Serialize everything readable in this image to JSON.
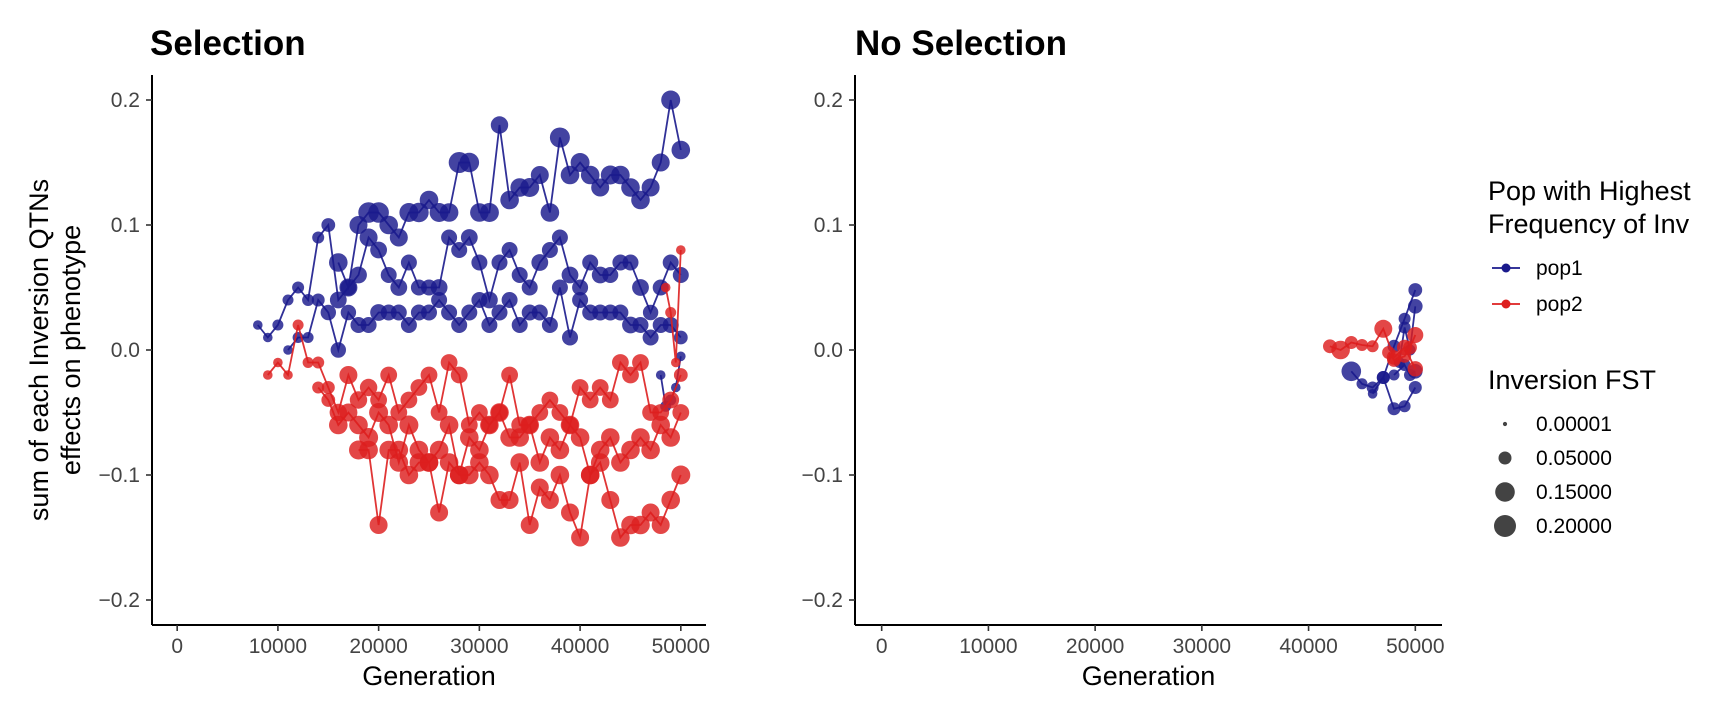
{
  "chart_data": [
    {
      "type": "scatter",
      "title": "Selection",
      "xlabel": "Generation",
      "ylabel": [
        "sum of each Inversion QTNs",
        "effects on phenotype"
      ],
      "xlim": [
        -2500,
        52500
      ],
      "ylim": [
        -0.22,
        0.22
      ],
      "xticks": [
        0,
        10000,
        20000,
        30000,
        40000,
        50000
      ],
      "yticks": [
        -0.2,
        -0.1,
        0.0,
        0.1,
        0.2
      ],
      "ytick_labels": [
        "−0.2",
        "−0.1",
        "0.0",
        "0.1",
        "0.2"
      ],
      "grid": false,
      "series": [
        {
          "name": "pop1",
          "color": "#1a1a8c",
          "line": "upper",
          "x": [
            16000,
            17000,
            18000,
            19000,
            20000,
            21000,
            22000,
            23000,
            24000,
            25000,
            26000,
            27000,
            28000,
            29000,
            30000,
            31000,
            32000,
            33000,
            34000,
            35000,
            36000,
            37000,
            38000,
            39000,
            40000,
            41000,
            42000,
            43000,
            44000,
            45000,
            46000,
            47000,
            48000,
            49000,
            50000
          ],
          "y": [
            0.07,
            0.05,
            0.1,
            0.11,
            0.11,
            0.1,
            0.09,
            0.11,
            0.11,
            0.12,
            0.11,
            0.11,
            0.15,
            0.15,
            0.11,
            0.11,
            0.18,
            0.12,
            0.13,
            0.13,
            0.14,
            0.11,
            0.17,
            0.14,
            0.15,
            0.14,
            0.13,
            0.14,
            0.14,
            0.13,
            0.12,
            0.13,
            0.15,
            0.2,
            0.16
          ],
          "fst": [
            0.13,
            0.12,
            0.12,
            0.17,
            0.17,
            0.13,
            0.12,
            0.14,
            0.15,
            0.13,
            0.14,
            0.13,
            0.18,
            0.15,
            0.13,
            0.14,
            0.11,
            0.13,
            0.13,
            0.14,
            0.12,
            0.13,
            0.16,
            0.13,
            0.14,
            0.13,
            0.12,
            0.14,
            0.13,
            0.13,
            0.13,
            0.12,
            0.12,
            0.14,
            0.13
          ]
        },
        {
          "name": "pop1",
          "color": "#1a1a8c",
          "line": "middle",
          "x": [
            8000,
            9000,
            10000,
            11000,
            12000,
            13000,
            14000,
            15000,
            16000,
            17000,
            18000,
            19000,
            20000,
            21000,
            22000,
            23000,
            24000,
            25000,
            26000,
            27000,
            28000,
            29000,
            30000,
            31000,
            32000,
            33000,
            34000,
            35000,
            36000,
            37000,
            38000,
            39000,
            40000,
            41000,
            42000,
            43000,
            44000,
            45000,
            46000,
            47000,
            48000,
            49000,
            50000
          ],
          "y": [
            0.02,
            0.01,
            0.02,
            0.04,
            0.05,
            0.04,
            0.09,
            0.1,
            0.04,
            0.05,
            0.06,
            0.09,
            0.08,
            0.06,
            0.05,
            0.07,
            0.05,
            0.05,
            0.05,
            0.09,
            0.08,
            0.09,
            0.07,
            0.04,
            0.07,
            0.08,
            0.06,
            0.05,
            0.07,
            0.08,
            0.09,
            0.06,
            0.05,
            0.07,
            0.06,
            0.06,
            0.07,
            0.07,
            0.05,
            0.03,
            0.05,
            0.07,
            0.06
          ],
          "fst": [
            0.02,
            0.02,
            0.03,
            0.03,
            0.04,
            0.04,
            0.04,
            0.06,
            0.1,
            0.09,
            0.1,
            0.12,
            0.1,
            0.09,
            0.1,
            0.09,
            0.09,
            0.09,
            0.1,
            0.09,
            0.09,
            0.1,
            0.09,
            0.1,
            0.09,
            0.09,
            0.09,
            0.09,
            0.1,
            0.09,
            0.09,
            0.1,
            0.09,
            0.09,
            0.1,
            0.09,
            0.09,
            0.09,
            0.1,
            0.08,
            0.09,
            0.09,
            0.09
          ]
        },
        {
          "name": "pop1",
          "color": "#1a1a8c",
          "line": "lower",
          "x": [
            11000,
            12000,
            13000,
            14000,
            15000,
            16000,
            17000,
            18000,
            19000,
            20000,
            21000,
            22000,
            23000,
            24000,
            25000,
            26000,
            27000,
            28000,
            29000,
            30000,
            31000,
            32000,
            33000,
            34000,
            35000,
            36000,
            37000,
            38000,
            39000,
            40000,
            41000,
            42000,
            43000,
            44000,
            45000,
            46000,
            47000,
            48000,
            49000,
            50000
          ],
          "y": [
            0.0,
            0.01,
            0.01,
            0.04,
            0.03,
            0.0,
            0.03,
            0.02,
            0.02,
            0.03,
            0.03,
            0.03,
            0.02,
            0.03,
            0.03,
            0.04,
            0.03,
            0.02,
            0.03,
            0.04,
            0.02,
            0.03,
            0.04,
            0.02,
            0.03,
            0.03,
            0.02,
            0.05,
            0.01,
            0.04,
            0.03,
            0.03,
            0.03,
            0.03,
            0.02,
            0.02,
            0.01,
            0.02,
            0.02,
            0.01
          ],
          "fst": [
            0.02,
            0.03,
            0.03,
            0.05,
            0.08,
            0.08,
            0.08,
            0.09,
            0.09,
            0.1,
            0.09,
            0.09,
            0.09,
            0.09,
            0.09,
            0.09,
            0.09,
            0.09,
            0.09,
            0.09,
            0.09,
            0.09,
            0.09,
            0.09,
            0.09,
            0.09,
            0.09,
            0.09,
            0.09,
            0.09,
            0.09,
            0.09,
            0.09,
            0.09,
            0.1,
            0.09,
            0.09,
            0.09,
            0.09,
            0.06
          ]
        },
        {
          "name": "pop1",
          "color": "#1a1a8c",
          "line": "small-tail",
          "x": [
            48000,
            48500,
            49000,
            49500,
            50000
          ],
          "y": [
            -0.02,
            -0.045,
            -0.04,
            -0.03,
            -0.005
          ],
          "fst": [
            0.02,
            0.03,
            0.03,
            0.02,
            0.02
          ]
        },
        {
          "name": "pop2",
          "color": "#dd1f1f",
          "line": "upper",
          "x": [
            9000,
            10000,
            11000,
            12000,
            13000,
            14000,
            15000,
            16000,
            17000,
            18000,
            19000,
            20000,
            21000,
            22000,
            23000,
            24000,
            25000,
            26000,
            27000,
            28000,
            29000,
            30000,
            31000,
            32000,
            33000,
            34000,
            35000,
            36000,
            37000,
            38000,
            39000,
            40000,
            41000,
            42000,
            43000,
            44000,
            45000,
            46000,
            47000,
            48000,
            49000,
            50000
          ],
          "y": [
            -0.02,
            -0.01,
            -0.02,
            0.02,
            -0.01,
            -0.01,
            -0.03,
            -0.05,
            -0.02,
            -0.04,
            -0.03,
            -0.04,
            -0.02,
            -0.05,
            -0.04,
            -0.03,
            -0.02,
            -0.05,
            -0.01,
            -0.02,
            -0.06,
            -0.05,
            -0.06,
            -0.05,
            -0.02,
            -0.06,
            -0.06,
            -0.05,
            -0.04,
            -0.05,
            -0.06,
            -0.03,
            -0.04,
            -0.03,
            -0.04,
            -0.01,
            -0.02,
            -0.01,
            -0.05,
            -0.05,
            -0.04,
            -0.02
          ],
          "fst": [
            0.02,
            0.02,
            0.02,
            0.03,
            0.03,
            0.04,
            0.05,
            0.11,
            0.12,
            0.11,
            0.11,
            0.1,
            0.1,
            0.1,
            0.1,
            0.1,
            0.1,
            0.1,
            0.1,
            0.1,
            0.1,
            0.1,
            0.1,
            0.1,
            0.1,
            0.1,
            0.1,
            0.1,
            0.1,
            0.1,
            0.1,
            0.1,
            0.1,
            0.1,
            0.1,
            0.1,
            0.1,
            0.1,
            0.1,
            0.1,
            0.1,
            0.06
          ]
        },
        {
          "name": "pop2",
          "color": "#dd1f1f",
          "line": "middle",
          "x": [
            14000,
            15000,
            16000,
            17000,
            18000,
            19000,
            20000,
            21000,
            22000,
            23000,
            24000,
            25000,
            26000,
            27000,
            28000,
            29000,
            30000,
            31000,
            32000,
            33000,
            34000,
            35000,
            36000,
            37000,
            38000,
            39000,
            40000,
            41000,
            42000,
            43000,
            44000,
            45000,
            46000,
            47000,
            48000,
            49000,
            50000
          ],
          "y": [
            -0.03,
            -0.04,
            -0.06,
            -0.05,
            -0.06,
            -0.07,
            -0.05,
            -0.06,
            -0.09,
            -0.06,
            -0.08,
            -0.09,
            -0.08,
            -0.06,
            -0.1,
            -0.07,
            -0.08,
            -0.06,
            -0.05,
            -0.07,
            -0.07,
            -0.06,
            -0.09,
            -0.07,
            -0.08,
            -0.06,
            -0.07,
            -0.1,
            -0.08,
            -0.07,
            -0.09,
            -0.08,
            -0.07,
            -0.08,
            -0.06,
            -0.07,
            -0.05
          ],
          "fst": [
            0.04,
            0.06,
            0.13,
            0.12,
            0.13,
            0.14,
            0.14,
            0.13,
            0.13,
            0.14,
            0.13,
            0.13,
            0.13,
            0.13,
            0.13,
            0.13,
            0.13,
            0.13,
            0.13,
            0.13,
            0.13,
            0.13,
            0.13,
            0.13,
            0.13,
            0.13,
            0.13,
            0.13,
            0.13,
            0.13,
            0.13,
            0.13,
            0.13,
            0.13,
            0.13,
            0.13,
            0.1
          ]
        },
        {
          "name": "pop2",
          "color": "#dd1f1f",
          "line": "lower",
          "x": [
            18000,
            19000,
            20000,
            21000,
            22000,
            23000,
            24000,
            25000,
            26000,
            27000,
            28000,
            29000,
            30000,
            31000,
            32000,
            33000,
            34000,
            35000,
            36000,
            37000,
            38000,
            39000,
            40000,
            41000,
            42000,
            43000,
            44000,
            45000,
            46000,
            47000,
            48000,
            49000,
            50000
          ],
          "y": [
            -0.08,
            -0.08,
            -0.14,
            -0.08,
            -0.08,
            -0.1,
            -0.09,
            -0.09,
            -0.13,
            -0.09,
            -0.1,
            -0.1,
            -0.09,
            -0.1,
            -0.12,
            -0.12,
            -0.09,
            -0.14,
            -0.11,
            -0.12,
            -0.1,
            -0.13,
            -0.15,
            -0.1,
            -0.09,
            -0.12,
            -0.15,
            -0.14,
            -0.14,
            -0.13,
            -0.14,
            -0.12,
            -0.1
          ],
          "fst": [
            0.14,
            0.13,
            0.12,
            0.13,
            0.13,
            0.13,
            0.13,
            0.13,
            0.12,
            0.13,
            0.13,
            0.13,
            0.13,
            0.13,
            0.12,
            0.12,
            0.13,
            0.12,
            0.12,
            0.12,
            0.13,
            0.12,
            0.12,
            0.13,
            0.13,
            0.12,
            0.13,
            0.13,
            0.13,
            0.12,
            0.12,
            0.13,
            0.14
          ]
        },
        {
          "name": "pop2",
          "color": "#dd1f1f",
          "line": "small-tail",
          "x": [
            48500,
            49000,
            49500,
            50000
          ],
          "y": [
            0.05,
            0.03,
            -0.01,
            0.08
          ],
          "fst": [
            0.02,
            0.03,
            0.02,
            0.02
          ]
        }
      ]
    },
    {
      "type": "scatter",
      "title": "No Selection",
      "xlabel": "Generation",
      "ylabel": "",
      "xlim": [
        -2500,
        52500
      ],
      "ylim": [
        -0.22,
        0.22
      ],
      "xticks": [
        0,
        10000,
        20000,
        30000,
        40000,
        50000
      ],
      "yticks": [
        -0.2,
        -0.1,
        0.0,
        0.1,
        0.2
      ],
      "ytick_labels": [
        "−0.2",
        "−0.1",
        "0.0",
        "0.1",
        "0.2"
      ],
      "grid": false,
      "series": [
        {
          "name": "pop1",
          "color": "#1a1a8c",
          "line": "a",
          "x": [
            44000,
            45000,
            46000,
            47000,
            48000,
            49000,
            50000
          ],
          "y": [
            -0.017,
            -0.027,
            -0.03,
            -0.022,
            -0.047,
            -0.045,
            -0.03
          ],
          "fst": [
            0.15,
            0.03,
            0.04,
            0.05,
            0.05,
            0.04,
            0.05
          ]
        },
        {
          "name": "pop1",
          "color": "#1a1a8c",
          "line": "b",
          "x": [
            46000,
            47000,
            48000,
            49000,
            50000
          ],
          "y": [
            -0.035,
            -0.022,
            0.003,
            0.025,
            0.048
          ],
          "fst": [
            0.02,
            0.05,
            0.05,
            0.04,
            0.06
          ]
        },
        {
          "name": "pop1",
          "color": "#1a1a8c",
          "line": "c",
          "x": [
            48500,
            49000,
            49500,
            50000
          ],
          "y": [
            -0.01,
            0.018,
            0.0,
            0.035
          ],
          "fst": [
            0.03,
            0.04,
            0.03,
            0.07
          ]
        },
        {
          "name": "pop1",
          "color": "#1a1a8c",
          "line": "d",
          "x": [
            48000,
            49000,
            49500,
            50000
          ],
          "y": [
            -0.02,
            -0.012,
            -0.02,
            -0.017
          ],
          "fst": [
            0.03,
            0.04,
            0.04,
            0.07
          ]
        },
        {
          "name": "pop2",
          "color": "#dd1f1f",
          "line": "a",
          "x": [
            42000,
            43000,
            44000,
            45000,
            46000,
            47000,
            48000,
            49000,
            50000
          ],
          "y": [
            0.003,
            0.0,
            0.006,
            0.004,
            0.003,
            0.017,
            -0.006,
            0.002,
            -0.015
          ],
          "fst": [
            0.06,
            0.13,
            0.05,
            0.04,
            0.04,
            0.12,
            0.07,
            0.08,
            0.08
          ]
        },
        {
          "name": "pop2",
          "color": "#dd1f1f",
          "line": "b",
          "x": [
            47500,
            48000,
            49000,
            49500,
            50000
          ],
          "y": [
            -0.002,
            -0.008,
            -0.005,
            0.002,
            0.012
          ],
          "fst": [
            0.05,
            0.06,
            0.05,
            0.06,
            0.09
          ]
        }
      ]
    }
  ],
  "legend": {
    "placement": "right",
    "color_title": [
      "Pop with Highest",
      "Frequency of Inv"
    ],
    "color_items": [
      {
        "label": "pop1",
        "color": "#1a1a8c"
      },
      {
        "label": "pop2",
        "color": "#dd1f1f"
      }
    ],
    "size_title": "Inversion FST",
    "size_items": [
      {
        "label": "0.00001",
        "fst": 1e-05
      },
      {
        "label": "0.05000",
        "fst": 0.05
      },
      {
        "label": "0.15000",
        "fst": 0.15
      },
      {
        "label": "0.20000",
        "fst": 0.2
      }
    ]
  }
}
